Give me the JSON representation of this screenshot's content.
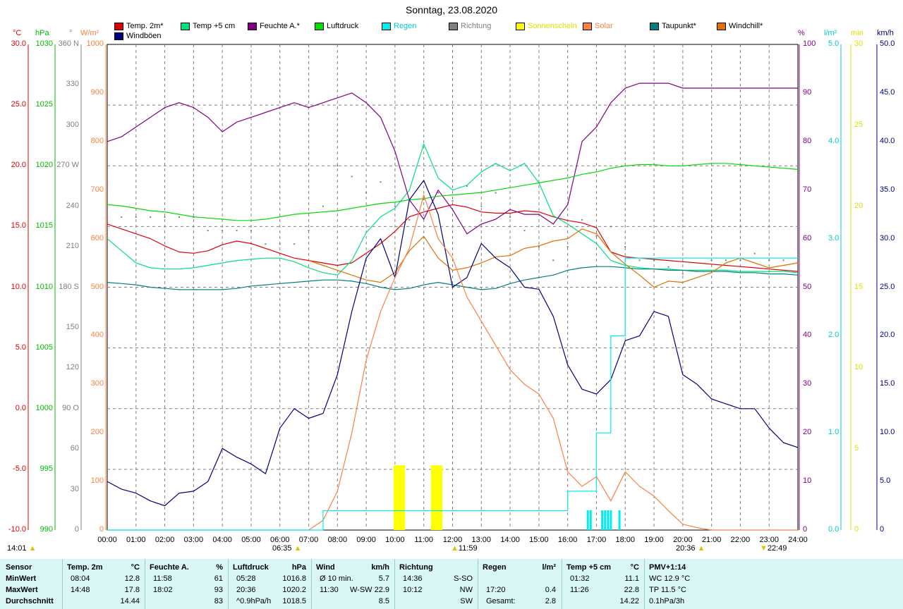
{
  "title": "Sonntag, 23.08.2020",
  "legend": [
    {
      "label": "Temp. 2m*",
      "color": "#dd0000",
      "text_color": "#000"
    },
    {
      "label": "Windböen",
      "color": "#000080",
      "text_color": "#000"
    },
    {
      "label": "Temp +5 cm",
      "color": "#00e080",
      "text_color": "#000"
    },
    {
      "label": "Feuchte A.*",
      "color": "#800080",
      "text_color": "#000"
    },
    {
      "label": "Luftdruck",
      "color": "#00dd00",
      "text_color": "#000"
    },
    {
      "label": "Regen",
      "color": "#00eeee",
      "text_color": "#00cccc"
    },
    {
      "label": "Richtung",
      "color": "#808080",
      "text_color": "#808080"
    },
    {
      "label": "Sonnenschein",
      "color": "#ffff00",
      "text_color": "#e0e000"
    },
    {
      "label": "Solar",
      "color": "#ff8040",
      "text_color": "#ff8040"
    },
    {
      "label": "Taupunkt*",
      "color": "#008080",
      "text_color": "#000"
    },
    {
      "label": "Windchill*",
      "color": "#e07000",
      "text_color": "#000"
    }
  ],
  "axes": {
    "temp": {
      "unit": "°C",
      "color": "#dd0000",
      "ticks": [
        "30.0",
        "25.0",
        "20.0",
        "15.0",
        "10.0",
        "5.0",
        "0.0",
        "-5.0",
        "-10.0"
      ]
    },
    "pressure": {
      "unit": "hPa",
      "color": "#00bb00",
      "ticks": [
        "1030",
        "1025",
        "1020",
        "1015",
        "1010",
        "1005",
        "1000",
        "995",
        "990"
      ]
    },
    "direction": {
      "unit": "°",
      "color": "#808080",
      "ticks": [
        "360 N",
        "330",
        "300",
        "270 W",
        "240",
        "210",
        "180 S",
        "150",
        "120",
        "90 O",
        "60",
        "30",
        "0"
      ]
    },
    "solar": {
      "unit": "W/m²",
      "color": "#ff8040",
      "ticks": [
        "1000",
        "900",
        "800",
        "700",
        "600",
        "500",
        "400",
        "300",
        "200",
        "100",
        "0"
      ]
    },
    "humidity": {
      "unit": "%",
      "color": "#800080",
      "ticks": [
        "100",
        "90",
        "80",
        "70",
        "60",
        "50",
        "40",
        "30",
        "20",
        "10",
        "0"
      ]
    },
    "rain": {
      "unit": "l/m²",
      "color": "#00cccc",
      "ticks": [
        "5.0",
        "4.0",
        "3.0",
        "2.0",
        "1.0",
        "0.0"
      ]
    },
    "sun": {
      "unit": "min",
      "color": "#e0e000",
      "ticks": [
        "30",
        "25",
        "20",
        "15",
        "10",
        "5",
        "0"
      ]
    },
    "wind": {
      "unit": "km/h",
      "color": "#000080",
      "ticks": [
        "50.0",
        "45.0",
        "40.0",
        "35.0",
        "30.0",
        "25.0",
        "20.0",
        "15.0",
        "10.0",
        "5.0",
        "0"
      ]
    }
  },
  "x_ticks": [
    "00:00",
    "01:00",
    "02:00",
    "03:00",
    "04:00",
    "05:00",
    "06:00",
    "07:00",
    "08:00",
    "09:00",
    "10:00",
    "11:00",
    "12:00",
    "13:00",
    "14:00",
    "15:00",
    "16:00",
    "17:00",
    "18:00",
    "19:00",
    "20:00",
    "21:00",
    "22:00",
    "23:00",
    "24:00"
  ],
  "markers": {
    "time_left": "14:01",
    "sunrise": "06:35",
    "noon": "11:59",
    "sunset": "20:36",
    "moon": "22:49"
  },
  "chart_data": {
    "type": "line",
    "title": "Sonntag, 23.08.2020",
    "x_range": [
      "00:00",
      "24:00"
    ],
    "x_hours": [
      0,
      0.5,
      1,
      1.5,
      2,
      2.5,
      3,
      3.5,
      4,
      4.5,
      5,
      5.5,
      6,
      6.5,
      7,
      7.5,
      8,
      8.5,
      9,
      9.5,
      10,
      10.5,
      11,
      11.5,
      12,
      12.5,
      13,
      13.5,
      14,
      14.5,
      15,
      15.5,
      16,
      16.5,
      17,
      17.5,
      18,
      18.5,
      19,
      19.5,
      20,
      20.5,
      21,
      21.5,
      22,
      22.5,
      23,
      23.5,
      24
    ],
    "series": [
      {
        "name": "Temp. 2m*",
        "axis": "temp",
        "color": "#dd0000",
        "values": [
          15.2,
          14.8,
          14.4,
          14.0,
          13.4,
          12.9,
          12.8,
          13.0,
          13.5,
          13.8,
          13.6,
          13.2,
          12.8,
          12.4,
          12.2,
          12.0,
          11.8,
          12.0,
          12.8,
          13.6,
          14.6,
          15.8,
          16.2,
          16.5,
          16.8,
          16.6,
          16.2,
          16.1,
          16.1,
          16.3,
          16.2,
          15.8,
          15.5,
          15.3,
          14.9,
          12.9,
          12.5,
          12.4,
          12.3,
          12.2,
          12.1,
          12.0,
          11.9,
          11.8,
          11.7,
          11.6,
          11.5,
          11.4,
          11.3
        ]
      },
      {
        "name": "Temp +5 cm",
        "axis": "temp",
        "color": "#00e080",
        "values": [
          14.0,
          13.0,
          12.0,
          11.6,
          11.5,
          11.5,
          11.6,
          11.8,
          12.0,
          12.2,
          12.3,
          12.4,
          12.4,
          12.1,
          11.6,
          11.2,
          11.0,
          12.2,
          14.5,
          15.8,
          16.5,
          18.0,
          21.8,
          19.0,
          18.0,
          18.4,
          19.5,
          20.2,
          19.6,
          20.2,
          18.6,
          15.9,
          15.2,
          14.4,
          13.6,
          12.2,
          11.8,
          11.6,
          11.5,
          11.5,
          11.4,
          11.4,
          11.4,
          11.4,
          11.3,
          11.3,
          11.3,
          11.3,
          11.2
        ]
      },
      {
        "name": "Feuchte A.*",
        "axis": "humidity",
        "color": "#800080",
        "values": [
          80,
          81,
          83,
          85,
          87,
          88,
          87,
          85,
          82,
          84,
          85,
          86,
          87,
          88,
          87,
          88,
          89,
          90,
          88,
          85,
          78,
          68,
          64,
          70,
          66,
          61,
          63,
          64,
          66,
          65,
          65,
          63,
          67,
          80,
          83,
          88,
          91,
          92,
          92,
          92,
          91,
          91,
          91,
          91,
          91,
          91,
          91,
          91,
          91
        ]
      },
      {
        "name": "Luftdruck",
        "axis": "pressure",
        "color": "#00dd00",
        "values": [
          1016.8,
          1016.7,
          1016.5,
          1016.3,
          1016.2,
          1016.0,
          1015.8,
          1015.7,
          1015.6,
          1015.5,
          1015.5,
          1015.6,
          1015.8,
          1016.0,
          1016.1,
          1016.2,
          1016.3,
          1016.5,
          1016.7,
          1016.9,
          1017.0,
          1017.2,
          1017.3,
          1017.5,
          1017.6,
          1017.7,
          1017.8,
          1018.0,
          1018.2,
          1018.4,
          1018.6,
          1018.8,
          1019.0,
          1019.3,
          1019.5,
          1019.8,
          1020.0,
          1020.1,
          1020.1,
          1020.0,
          1020.0,
          1020.1,
          1020.2,
          1020.2,
          1020.1,
          1020.0,
          1019.9,
          1019.8,
          1019.7
        ]
      },
      {
        "name": "Taupunkt*",
        "axis": "temp",
        "color": "#008080",
        "values": [
          10.4,
          10.3,
          10.2,
          10.0,
          9.9,
          9.8,
          9.8,
          9.8,
          9.8,
          9.9,
          10.1,
          10.2,
          10.3,
          10.4,
          10.5,
          10.6,
          10.6,
          10.5,
          10.3,
          10.0,
          9.8,
          9.9,
          10.2,
          10.4,
          10.2,
          10.0,
          9.8,
          9.9,
          10.3,
          10.6,
          10.8,
          11.0,
          11.4,
          11.6,
          11.7,
          11.7,
          11.6,
          11.5,
          11.5,
          11.4,
          11.4,
          11.3,
          11.3,
          11.3,
          11.2,
          11.2,
          11.1,
          11.1,
          11.0
        ]
      },
      {
        "name": "Windchill*",
        "axis": "temp",
        "color": "#e07000",
        "values": [
          null,
          null,
          null,
          null,
          null,
          null,
          null,
          null,
          null,
          null,
          null,
          null,
          null,
          null,
          12.2,
          11.8,
          11.4,
          11.0,
          10.6,
          10.4,
          11.2,
          13.0,
          14.2,
          12.4,
          11.4,
          11.6,
          12.0,
          12.5,
          12.6,
          13.2,
          13.4,
          13.8,
          14.0,
          14.8,
          14.4,
          12.9,
          11.9,
          11.0,
          10.0,
          10.5,
          10.4,
          10.8,
          11.2,
          12.0,
          12.4,
          12.0,
          11.6,
          11.8,
          12.0
        ]
      },
      {
        "name": "Windböen",
        "axis": "wind",
        "color": "#000080",
        "values": [
          5.0,
          4.2,
          3.8,
          3.0,
          2.5,
          3.8,
          4.0,
          5.0,
          8.4,
          7.5,
          6.8,
          5.8,
          10.5,
          12.5,
          11.5,
          12.0,
          16.0,
          22.5,
          28.0,
          30.0,
          26.0,
          34.0,
          36.0,
          32.5,
          25.0,
          26.0,
          29.5,
          28.0,
          27.0,
          25.0,
          24.8,
          22.0,
          17.0,
          14.5,
          14.0,
          15.5,
          19.5,
          20.0,
          22.5,
          22.0,
          16.0,
          15.0,
          13.5,
          13.0,
          12.5,
          12.5,
          10.5,
          9.0,
          8.5
        ]
      },
      {
        "name": "Richtung",
        "axis": "direction",
        "color": "#808080",
        "values": [
          232,
          232,
          232,
          232,
          232,
          232,
          232,
          222,
          222,
          222,
          222,
          212,
          212,
          212,
          222,
          240,
          270,
          262,
          250,
          258,
          240,
          230,
          245,
          250,
          244,
          255,
          240,
          250,
          232,
          222,
          210,
          200,
          210,
          230,
          218,
          225,
          210,
          200,
          200,
          195,
          190,
          192,
          200,
          200,
          200,
          205,
          200,
          200,
          200
        ]
      },
      {
        "name": "Solar",
        "axis": "solar",
        "color": "#ff8040",
        "values": [
          0,
          0,
          0,
          0,
          0,
          0,
          0,
          0,
          0,
          0,
          0,
          0,
          0,
          0,
          0,
          20,
          80,
          200,
          350,
          450,
          520,
          580,
          690,
          600,
          560,
          480,
          430,
          380,
          330,
          300,
          280,
          230,
          120,
          90,
          110,
          60,
          120,
          90,
          70,
          40,
          12,
          5,
          0,
          0,
          0,
          0,
          0,
          0,
          0
        ]
      },
      {
        "name": "Regen",
        "axis": "rain",
        "color": "#00eeee",
        "values": [
          0,
          0,
          0,
          0,
          0,
          0,
          0,
          0,
          0,
          0,
          0,
          0,
          0,
          0,
          0,
          0.2,
          0.2,
          0.2,
          0.2,
          0.2,
          0.2,
          0.2,
          0.2,
          0.2,
          0.2,
          0.2,
          0.2,
          0.2,
          0.2,
          0.2,
          0.2,
          0.2,
          0.4,
          0.4,
          1.0,
          2.0,
          2.8,
          2.8,
          2.8,
          2.8,
          2.8,
          2.8,
          2.8,
          2.8,
          2.8,
          2.8,
          2.8,
          2.8,
          2.8
        ]
      }
    ],
    "sunshine_bars_hours": [
      10.0,
      10.1,
      10.2,
      10.3,
      11.3,
      11.4,
      11.5,
      11.6
    ],
    "sunshine_bar_minutes": 4,
    "rain_bars_hours": [
      16.7,
      16.8,
      17.2,
      17.3,
      17.4,
      17.5,
      17.8
    ],
    "ylim": {
      "temp": [
        -10,
        30
      ],
      "pressure": [
        990,
        1030
      ],
      "direction": [
        0,
        360
      ],
      "solar": [
        0,
        1000
      ],
      "humidity": [
        0,
        100
      ],
      "rain": [
        0,
        5
      ],
      "sun": [
        0,
        30
      ],
      "wind": [
        0,
        50
      ]
    },
    "grid": true
  },
  "stats": {
    "headers": [
      {
        "label": "Sensor",
        "unit": ""
      },
      {
        "label": "Temp. 2m",
        "unit": "°C"
      },
      {
        "label": "Feuchte A.",
        "unit": "%"
      },
      {
        "label": "Luftdruck",
        "unit": "hPa"
      },
      {
        "label": "Wind",
        "unit": "km/h"
      },
      {
        "label": "Richtung",
        "unit": ""
      },
      {
        "label": "Regen",
        "unit": "l/m²"
      },
      {
        "label": "Temp +5 cm",
        "unit": "°C"
      },
      {
        "label": "PMV+1:14",
        "unit": ""
      }
    ],
    "row_labels": [
      "MinWert",
      "MaxWert",
      "Durchschnitt"
    ],
    "temp2m": [
      [
        "08:04",
        "12.8"
      ],
      [
        "14:48",
        "17.8"
      ],
      [
        "",
        "14.44"
      ]
    ],
    "feuchte": [
      [
        "11:58",
        "61"
      ],
      [
        "18:02",
        "93"
      ],
      [
        "",
        "83"
      ]
    ],
    "luftdruck": [
      [
        "05:28",
        "1016.8"
      ],
      [
        "20:36",
        "1020.2"
      ],
      [
        "^0.9hPa/h",
        "1018.5"
      ]
    ],
    "wind": [
      [
        "Ø 10 min.",
        "5.7"
      ],
      [
        "11:30",
        "W-SW 22.9"
      ],
      [
        "",
        "8.5"
      ]
    ],
    "richtung": [
      [
        "14:36",
        "S-SO"
      ],
      [
        "10:12",
        "NW"
      ],
      [
        "",
        "SW"
      ]
    ],
    "regen": [
      [
        "",
        ""
      ],
      [
        "17:20",
        "0.4"
      ],
      [
        "Gesamt:",
        "2.8"
      ]
    ],
    "temp5cm": [
      [
        "01:32",
        "11.1"
      ],
      [
        "11:26",
        "22.8"
      ],
      [
        "",
        "14.22"
      ]
    ],
    "pmv": [
      "WC 12.9 °C",
      "TP 11.5 °C",
      "0.1hPa/3h"
    ]
  }
}
